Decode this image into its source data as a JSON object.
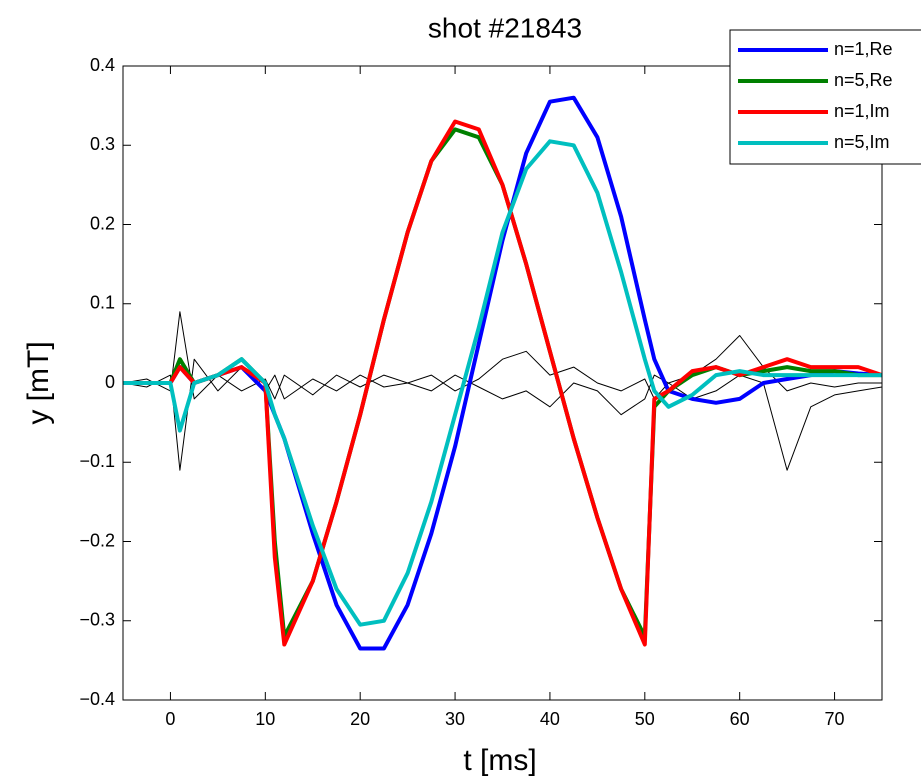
{
  "chart_data": {
    "type": "line",
    "title": "shot #21843",
    "x_label": "t [ms]",
    "y_label": "y [mT]",
    "x": [
      -5,
      -2.5,
      0,
      1,
      2.5,
      5,
      7.5,
      10,
      11,
      12,
      15,
      17.5,
      20,
      22.5,
      25,
      27.5,
      30,
      32.5,
      35,
      37.5,
      40,
      42.5,
      45,
      47.5,
      50,
      51,
      52.5,
      55,
      57.5,
      60,
      62.5,
      65,
      67.5,
      70,
      72.5,
      75
    ],
    "series": [
      {
        "color": "#000000",
        "values": [
          0,
          0.005,
          -0.01,
          0.09,
          -0.02,
          0.01,
          -0.01,
          0.005,
          -0.02,
          0.01,
          -0.015,
          0.01,
          -0.005,
          0.01,
          0,
          0.01,
          -0.01,
          0.005,
          0.03,
          0.04,
          0.01,
          0.02,
          0,
          -0.01,
          0.005,
          -0.02,
          0,
          0.01,
          0.03,
          0.06,
          0.02,
          -0.01,
          0,
          -0.005,
          0,
          0
        ]
      },
      {
        "color": "#000000",
        "values": [
          0,
          -0.005,
          0.01,
          -0.11,
          0.03,
          -0.01,
          0.02,
          -0.01,
          0.01,
          -0.02,
          0.005,
          -0.01,
          0.01,
          -0.005,
          0,
          -0.01,
          0.01,
          -0.005,
          -0.02,
          -0.01,
          -0.03,
          0,
          -0.01,
          -0.04,
          -0.02,
          0.01,
          0,
          -0.02,
          -0.01,
          0.01,
          0,
          -0.11,
          -0.03,
          -0.015,
          -0.01,
          -0.005
        ]
      },
      {
        "name": "n=1,Re",
        "color": "#0000ff",
        "values": [
          0,
          0,
          0,
          0.02,
          0,
          0.01,
          0.02,
          -0.01,
          -0.04,
          -0.07,
          -0.19,
          -0.28,
          -0.335,
          -0.335,
          -0.28,
          -0.19,
          -0.08,
          0.05,
          0.18,
          0.29,
          0.355,
          0.36,
          0.31,
          0.21,
          0.08,
          0.03,
          -0.01,
          -0.02,
          -0.025,
          -0.02,
          0,
          0.005,
          0.01,
          0.015,
          0.012,
          0.01
        ]
      },
      {
        "name": "n=5,Re",
        "color": "#008000",
        "values": [
          0,
          0,
          0,
          0.03,
          0,
          0.01,
          0.03,
          0,
          -0.2,
          -0.32,
          -0.25,
          -0.15,
          -0.04,
          0.08,
          0.19,
          0.28,
          0.32,
          0.31,
          0.25,
          0.15,
          0.04,
          -0.07,
          -0.17,
          -0.26,
          -0.32,
          -0.03,
          -0.01,
          0.01,
          0.02,
          0.01,
          0.015,
          0.02,
          0.015,
          0.015,
          0.01,
          0.01
        ]
      },
      {
        "name": "n=1,Im",
        "color": "#ff0000",
        "values": [
          0,
          0,
          0,
          0.02,
          0,
          0.01,
          0.02,
          0,
          -0.22,
          -0.33,
          -0.25,
          -0.15,
          -0.04,
          0.08,
          0.19,
          0.28,
          0.33,
          0.32,
          0.25,
          0.15,
          0.04,
          -0.07,
          -0.17,
          -0.26,
          -0.33,
          -0.02,
          -0.01,
          0.015,
          0.02,
          0.01,
          0.02,
          0.03,
          0.02,
          0.02,
          0.02,
          0.01
        ]
      },
      {
        "name": "n=5,Im",
        "color": "#00bfbf",
        "values": [
          0,
          0,
          0,
          -0.06,
          0,
          0.01,
          0.03,
          0,
          -0.04,
          -0.07,
          -0.18,
          -0.26,
          -0.305,
          -0.3,
          -0.24,
          -0.15,
          -0.04,
          0.07,
          0.19,
          0.27,
          0.305,
          0.3,
          0.24,
          0.14,
          0.03,
          -0.01,
          -0.03,
          -0.015,
          0.01,
          0.015,
          0.01,
          0.01,
          0.01,
          0.01,
          0.01,
          0.01
        ]
      }
    ],
    "xlim": [
      -5,
      75
    ],
    "xticks": [
      0,
      10,
      20,
      30,
      40,
      50,
      60,
      70
    ],
    "ylim": [
      -0.4,
      0.4
    ],
    "yticks": [
      {
        "value": -0.4,
        "label": "−0.4"
      },
      {
        "value": -0.3,
        "label": "−0.3"
      },
      {
        "value": -0.2,
        "label": "−0.2"
      },
      {
        "value": -0.1,
        "label": "−0.1"
      },
      0,
      0.1,
      0.2,
      0.3,
      0.4
    ],
    "legend": "top-right"
  }
}
